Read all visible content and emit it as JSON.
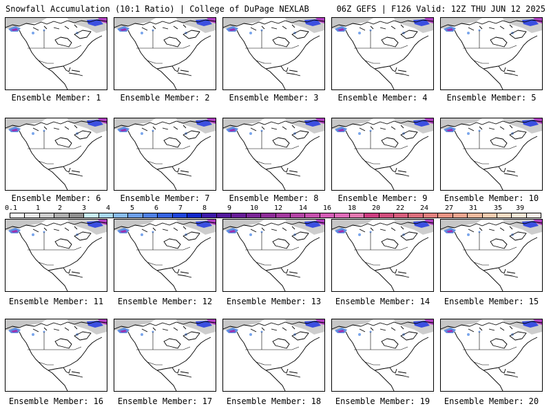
{
  "header": {
    "title_left": "Snowfall Accumulation (10:1 Ratio) | College of DuPage NEXLAB",
    "title_right": "06Z GEFS | F126 Valid: 12Z THU JUN 12 2025"
  },
  "panels": [
    {
      "label": "Ensemble Member: 1"
    },
    {
      "label": "Ensemble Member: 2"
    },
    {
      "label": "Ensemble Member: 3"
    },
    {
      "label": "Ensemble Member: 4"
    },
    {
      "label": "Ensemble Member: 5"
    },
    {
      "label": "Ensemble Member: 6"
    },
    {
      "label": "Ensemble Member: 7"
    },
    {
      "label": "Ensemble Member: 8"
    },
    {
      "label": "Ensemble Member: 9"
    },
    {
      "label": "Ensemble Member: 10"
    },
    {
      "label": "Ensemble Member: 11"
    },
    {
      "label": "Ensemble Member: 12"
    },
    {
      "label": "Ensemble Member: 13"
    },
    {
      "label": "Ensemble Member: 14"
    },
    {
      "label": "Ensemble Member: 15"
    },
    {
      "label": "Ensemble Member: 16"
    },
    {
      "label": "Ensemble Member: 17"
    },
    {
      "label": "Ensemble Member: 18"
    },
    {
      "label": "Ensemble Member: 19"
    },
    {
      "label": "Ensemble Member: 20"
    }
  ],
  "colorbar": {
    "labels": [
      "0.1",
      "1",
      "2",
      "3",
      "4",
      "5",
      "6",
      "7",
      "8",
      "9",
      "10",
      "12",
      "14",
      "16",
      "18",
      "20",
      "22",
      "24",
      "27",
      "31",
      "35",
      "39"
    ],
    "colors": [
      "#ffffff",
      "#e8e8e8",
      "#cfcfcf",
      "#b0b0b0",
      "#909090",
      "#c8f0f8",
      "#a8d8f0",
      "#88bcec",
      "#6c9ee8",
      "#4f80e4",
      "#3462e0",
      "#1f44dc",
      "#1026c8",
      "#3c18a8",
      "#52189c",
      "#661c96",
      "#7a2496",
      "#8e2c98",
      "#a2389e",
      "#b444a6",
      "#c650ae",
      "#d45cb6",
      "#de6ab8",
      "#e478b0",
      "#cc3c80",
      "#d04c7c",
      "#d65c7c",
      "#dc6e7c",
      "#e2807e",
      "#e89484",
      "#eea690",
      "#f2ba9e",
      "#f6ccb0",
      "#f8dcc4",
      "#fae8d8",
      "#fcf2e8"
    ]
  }
}
